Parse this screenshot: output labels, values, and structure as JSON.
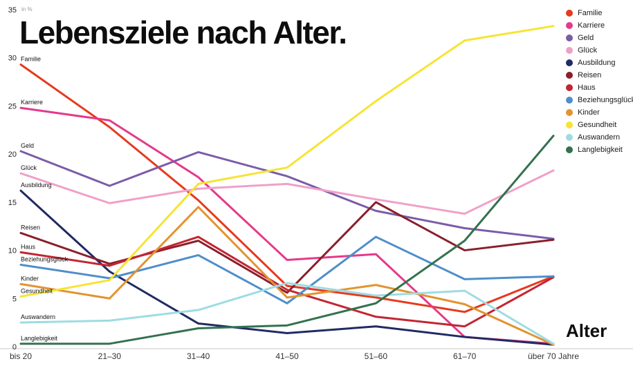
{
  "chart_data": {
    "type": "line",
    "title": "Lebensziele nach Alter.",
    "xlabel": "Alter",
    "ylabel": "",
    "y_unit_label": "in %",
    "ylim": [
      0,
      35
    ],
    "y_ticks": [
      0,
      5,
      10,
      15,
      20,
      25,
      30,
      35
    ],
    "grid": false,
    "legend_position": "top-right",
    "categories": [
      "bis 20",
      "21–30",
      "31–40",
      "41–50",
      "51–60",
      "61–70",
      "über 70 Jahre"
    ],
    "series": [
      {
        "name": "Familie",
        "color": "#e6391d",
        "values": [
          29.3,
          22.8,
          15.2,
          6.3,
          5.1,
          3.6,
          7.3
        ]
      },
      {
        "name": "Karriere",
        "color": "#e43a8b",
        "values": [
          24.8,
          23.5,
          17.6,
          9.0,
          9.6,
          1.0,
          0.3
        ]
      },
      {
        "name": "Geld",
        "color": "#7a5ca8",
        "values": [
          20.3,
          16.7,
          20.2,
          17.7,
          14.1,
          12.3,
          11.2
        ]
      },
      {
        "name": "Glück",
        "color": "#f0a0c8",
        "values": [
          18.0,
          14.9,
          16.4,
          16.9,
          15.3,
          13.8,
          18.3
        ]
      },
      {
        "name": "Ausbildung",
        "color": "#202a63",
        "values": [
          16.2,
          7.8,
          2.4,
          1.4,
          2.1,
          1.0,
          0.2
        ]
      },
      {
        "name": "Reisen",
        "color": "#8a1f2b",
        "values": [
          11.8,
          8.6,
          11.0,
          5.6,
          15.0,
          10.0,
          11.1
        ]
      },
      {
        "name": "Haus",
        "color": "#c22532",
        "values": [
          9.8,
          8.4,
          11.4,
          5.9,
          3.1,
          2.1,
          7.2
        ]
      },
      {
        "name": "Beziehungsglück",
        "color": "#4e8ecb",
        "values": [
          8.5,
          7.1,
          9.5,
          4.5,
          11.4,
          7.0,
          7.3
        ]
      },
      {
        "name": "Kinder",
        "color": "#e2932f",
        "values": [
          6.5,
          5.0,
          14.5,
          5.1,
          6.4,
          4.4,
          0.2
        ]
      },
      {
        "name": "Gesundheit",
        "color": "#f6e433",
        "values": [
          5.2,
          6.9,
          16.9,
          18.6,
          25.5,
          31.8,
          33.3
        ]
      },
      {
        "name": "Auswandern",
        "color": "#9ddce2",
        "values": [
          2.5,
          2.7,
          3.8,
          6.6,
          5.3,
          5.8,
          0.3
        ]
      },
      {
        "name": "Langlebigkeit",
        "color": "#33714e",
        "values": [
          0.3,
          0.3,
          1.9,
          2.2,
          4.5,
          11.0,
          21.9
        ]
      }
    ]
  }
}
